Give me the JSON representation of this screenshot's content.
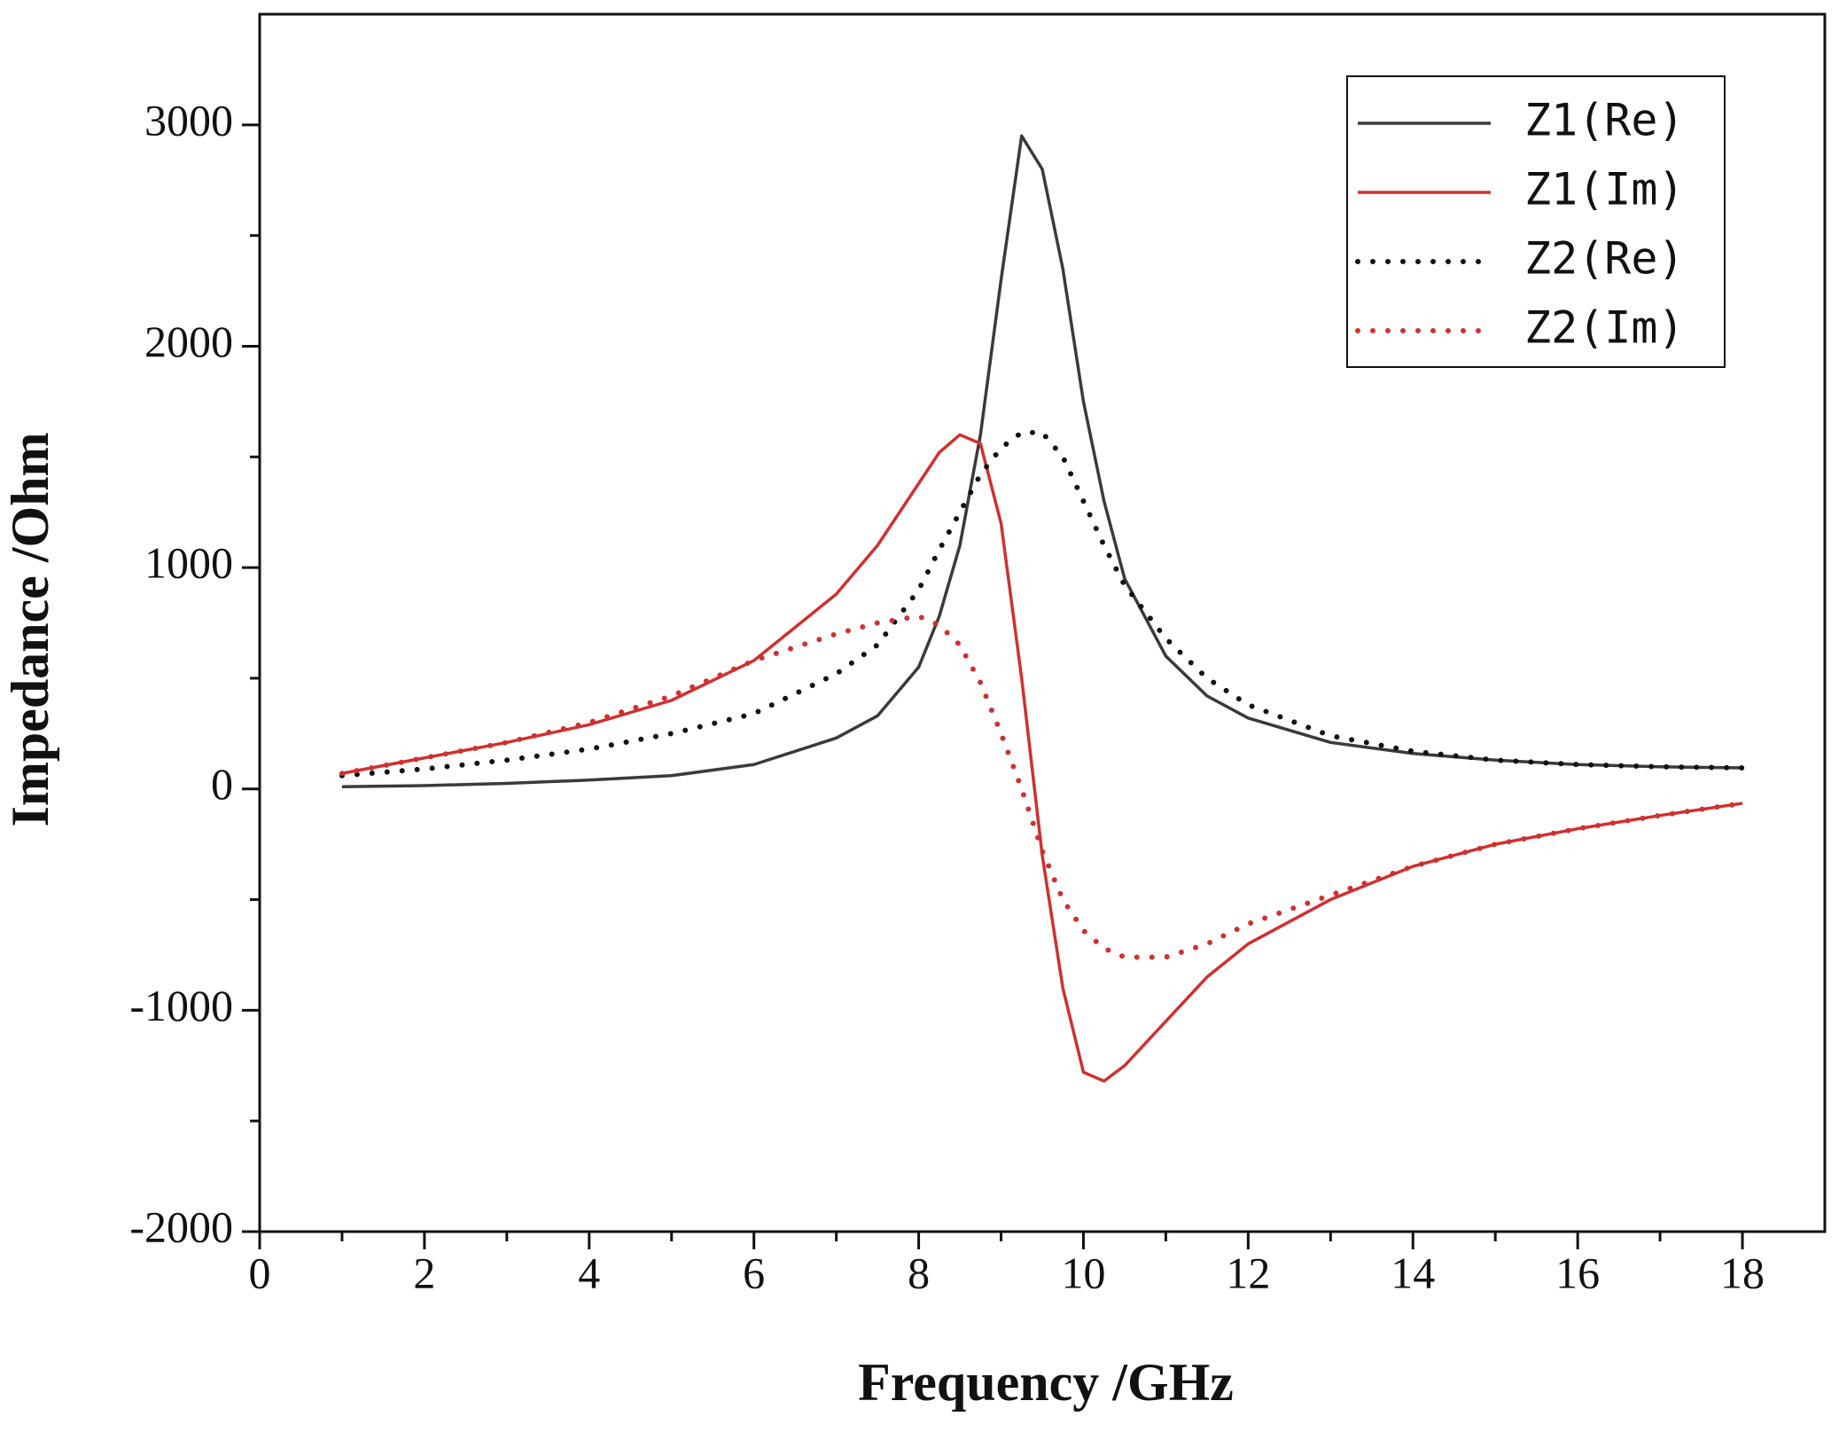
{
  "chart_data": {
    "type": "line",
    "x_label": "Frequency /GHz",
    "y_label": "Impedance /Ohm",
    "x": [
      1,
      2,
      3,
      4,
      5,
      6,
      7,
      7.5,
      8,
      8.25,
      8.5,
      8.75,
      9,
      9.25,
      9.5,
      9.75,
      10,
      10.25,
      10.5,
      11,
      11.5,
      12,
      13,
      14,
      15,
      16,
      17,
      18
    ],
    "series": [
      {
        "name": "Z1(Re)",
        "color": "#3a3a3a",
        "style": "solid",
        "values": [
          10,
          15,
          25,
          40,
          60,
          110,
          230,
          330,
          550,
          780,
          1100,
          1600,
          2300,
          2950,
          2800,
          2350,
          1750,
          1300,
          950,
          600,
          420,
          320,
          210,
          160,
          130,
          110,
          100,
          95
        ]
      },
      {
        "name": "Z1(Im)",
        "color": "#d03030",
        "style": "solid",
        "values": [
          70,
          140,
          210,
          290,
          400,
          580,
          880,
          1100,
          1380,
          1520,
          1600,
          1560,
          1200,
          500,
          -300,
          -900,
          -1280,
          -1320,
          -1250,
          -1050,
          -850,
          -700,
          -500,
          -350,
          -250,
          -180,
          -120,
          -65
        ]
      },
      {
        "name": "Z2(Re)",
        "color": "#111111",
        "style": "dotted",
        "values": [
          60,
          90,
          130,
          180,
          250,
          340,
          520,
          650,
          900,
          1080,
          1250,
          1420,
          1540,
          1610,
          1610,
          1500,
          1300,
          1100,
          920,
          680,
          500,
          380,
          240,
          170,
          130,
          110,
          100,
          95
        ]
      },
      {
        "name": "Z2(Im)",
        "color": "#d03030",
        "style": "dotted",
        "values": [
          70,
          140,
          210,
          300,
          420,
          580,
          700,
          750,
          780,
          740,
          650,
          480,
          250,
          0,
          -280,
          -500,
          -640,
          -720,
          -760,
          -760,
          -700,
          -610,
          -480,
          -350,
          -250,
          -180,
          -120,
          -65
        ]
      }
    ],
    "xlim": [
      0,
      19
    ],
    "xticks": [
      0,
      2,
      4,
      6,
      8,
      10,
      12,
      14,
      16,
      18
    ],
    "ylim": [
      -2000,
      3500
    ],
    "yticks": [
      -2000,
      -1000,
      0,
      1000,
      2000,
      3000
    ],
    "legend": "top right"
  }
}
